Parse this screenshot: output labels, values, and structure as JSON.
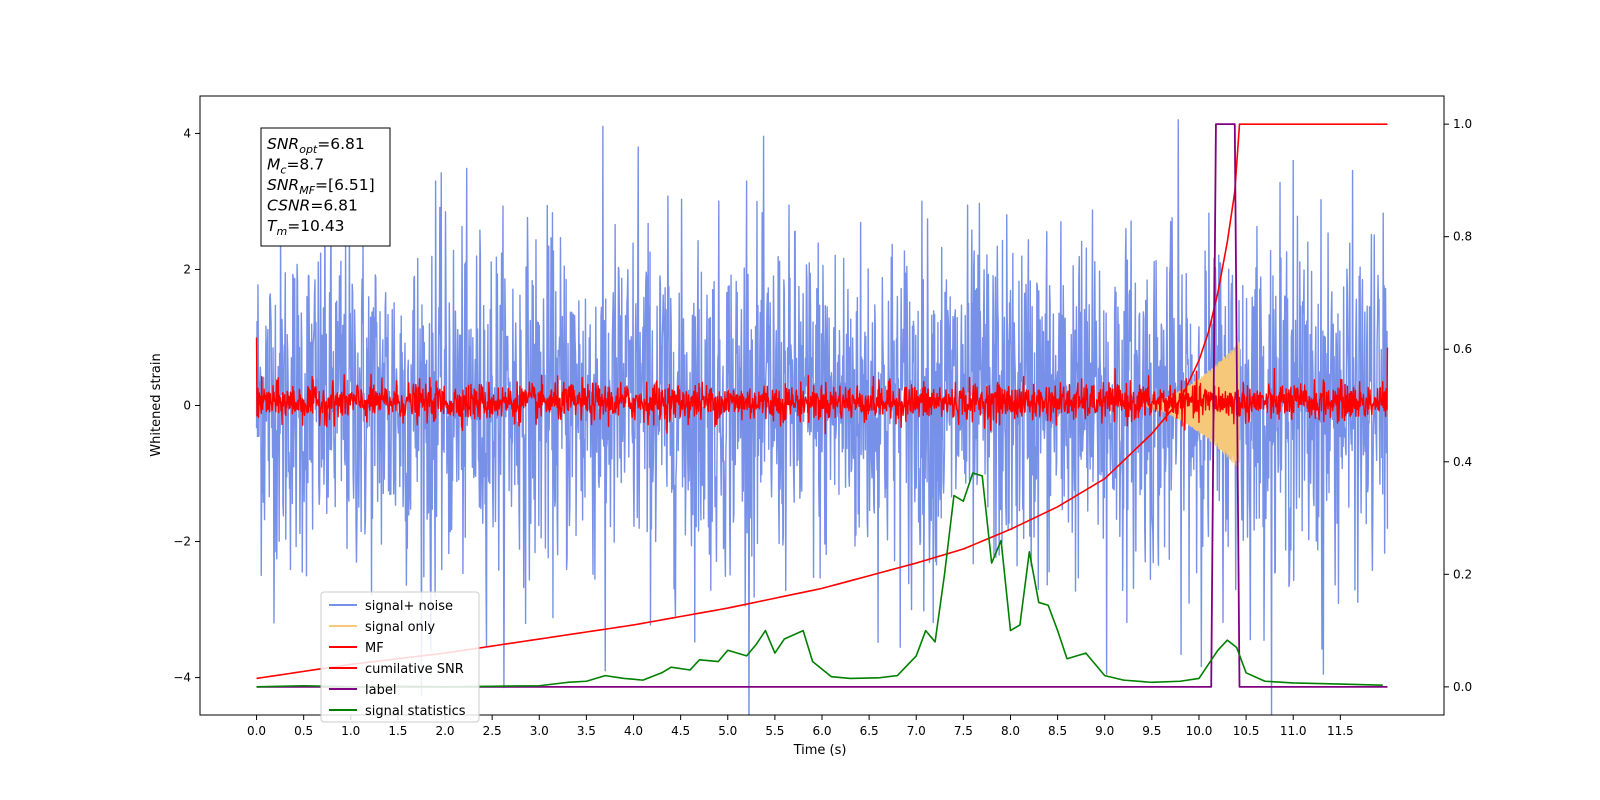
{
  "chart_data": {
    "type": "line",
    "xlabel": "Time (s)",
    "ylabel": "Whitened strain",
    "xlim": [
      -0.6,
      12.6
    ],
    "ylim": [
      -4.55,
      4.55
    ],
    "y2lim": [
      -0.05,
      1.05
    ],
    "x_ticks": [
      0.0,
      0.5,
      1.0,
      1.5,
      2.0,
      2.5,
      3.0,
      3.5,
      4.0,
      4.5,
      5.0,
      5.5,
      6.0,
      6.5,
      7.0,
      7.5,
      8.0,
      8.5,
      9.0,
      9.5,
      10.0,
      10.5,
      11.0,
      11.5
    ],
    "x_tick_labels": [
      "0.0",
      "0.5",
      "1.0",
      "1.5",
      "2.0",
      "2.5",
      "3.0",
      "3.5",
      "4.0",
      "4.5",
      "5.0",
      "5.5",
      "6.0",
      "6.5",
      "7.0",
      "7.5",
      "8.0",
      "8.5",
      "9.0",
      "9.5",
      "10.0",
      "10.5",
      "11.0",
      "11.5"
    ],
    "y_ticks": [
      -4,
      -2,
      0,
      2,
      4
    ],
    "y_tick_labels": [
      "−4",
      "−2",
      "0",
      "2",
      "4"
    ],
    "y2_ticks": [
      0.0,
      0.2,
      0.4,
      0.6,
      0.8,
      1.0
    ],
    "y2_tick_labels": [
      "0.0",
      "0.2",
      "0.4",
      "0.6",
      "0.8",
      "1.0"
    ],
    "grid": false,
    "legend_position": "lower-left",
    "colors": {
      "signal_noise": "#7891e8",
      "signal_only": "#f5c87a",
      "mf": "#ff0000",
      "cumulative_snr": "#ff0000",
      "label": "#800080",
      "signal_statistics": "#008000"
    },
    "annotation": [
      {
        "sym": "SNR",
        "sub": "opt",
        "val": "=6.81"
      },
      {
        "sym": "M",
        "sub": "c",
        "val": "=8.7"
      },
      {
        "sym": "SNR",
        "sub": "MF",
        "val": "=[6.51]"
      },
      {
        "sym": "CSNR",
        "sub": "",
        "val": "=6.81"
      },
      {
        "sym": "T",
        "sub": "m",
        "val": "=10.43"
      }
    ],
    "series": [
      {
        "name": "signal+ noise",
        "axis": "left",
        "style": "noise",
        "x_range": [
          0.0,
          12.0
        ],
        "noise_band": [
          -2.2,
          2.3
        ],
        "extremes": [
          {
            "x": 1.9,
            "y": 3.3
          },
          {
            "x": 4.05,
            "y": 3.8
          },
          {
            "x": 9.78,
            "y": 4.2
          },
          {
            "x": 11.0,
            "y": 3.6
          },
          {
            "x": 5.2,
            "y": 3.3
          },
          {
            "x": 1.85,
            "y": -3.6
          },
          {
            "x": 3.7,
            "y": -3.9
          },
          {
            "x": 9.02,
            "y": -3.95
          },
          {
            "x": 11.32,
            "y": -3.95
          },
          {
            "x": 6.95,
            "y": -3.0
          }
        ]
      },
      {
        "name": "signal only",
        "axis": "left",
        "style": "chirp",
        "x_range": [
          9.3,
          10.43
        ],
        "amplitude_max": 0.95
      },
      {
        "name": "MF",
        "axis": "left",
        "style": "noise",
        "x_range": [
          0.0,
          12.0
        ],
        "noise_band": [
          -0.2,
          0.3
        ],
        "start_value": 1.0,
        "end_value": 0.85
      },
      {
        "name": "cumilative SNR",
        "axis": "right",
        "x": [
          0.0,
          1.0,
          2.0,
          3.0,
          4.0,
          5.0,
          6.0,
          7.0,
          7.5,
          8.0,
          8.5,
          9.0,
          9.5,
          9.8,
          10.0,
          10.1,
          10.2,
          10.3,
          10.38,
          10.43,
          12.0
        ],
        "values": [
          0.015,
          0.04,
          0.06,
          0.085,
          0.11,
          0.14,
          0.175,
          0.22,
          0.245,
          0.28,
          0.32,
          0.37,
          0.45,
          0.51,
          0.58,
          0.63,
          0.7,
          0.79,
          0.88,
          1.0,
          1.0
        ]
      },
      {
        "name": "label",
        "axis": "right",
        "x": [
          0.0,
          10.13,
          10.18,
          10.38,
          10.43,
          12.0
        ],
        "values": [
          0.0,
          0.0,
          1.0,
          1.0,
          0.0,
          0.0
        ]
      },
      {
        "name": "signal statistics",
        "axis": "right",
        "x": [
          0.0,
          0.5,
          1.0,
          1.5,
          2.0,
          2.5,
          3.0,
          3.3,
          3.5,
          3.7,
          3.9,
          4.1,
          4.3,
          4.4,
          4.6,
          4.7,
          4.9,
          5.0,
          5.2,
          5.3,
          5.4,
          5.5,
          5.6,
          5.8,
          5.9,
          6.1,
          6.3,
          6.6,
          6.8,
          7.0,
          7.1,
          7.2,
          7.3,
          7.4,
          7.5,
          7.6,
          7.7,
          7.8,
          7.9,
          8.0,
          8.1,
          8.2,
          8.3,
          8.4,
          8.5,
          8.6,
          8.8,
          9.0,
          9.2,
          9.5,
          9.8,
          10.0,
          10.2,
          10.3,
          10.4,
          10.5,
          10.7,
          11.0,
          11.5,
          11.95
        ],
        "values": [
          0.0,
          0.002,
          0.0,
          0.001,
          0.0,
          0.001,
          0.002,
          0.008,
          0.01,
          0.02,
          0.015,
          0.012,
          0.025,
          0.035,
          0.03,
          0.048,
          0.045,
          0.065,
          0.055,
          0.075,
          0.1,
          0.06,
          0.085,
          0.1,
          0.045,
          0.018,
          0.015,
          0.016,
          0.02,
          0.055,
          0.1,
          0.08,
          0.2,
          0.34,
          0.33,
          0.38,
          0.375,
          0.22,
          0.26,
          0.1,
          0.11,
          0.24,
          0.15,
          0.145,
          0.1,
          0.05,
          0.06,
          0.02,
          0.012,
          0.008,
          0.01,
          0.015,
          0.065,
          0.083,
          0.07,
          0.025,
          0.01,
          0.007,
          0.005,
          0.003
        ]
      }
    ]
  }
}
